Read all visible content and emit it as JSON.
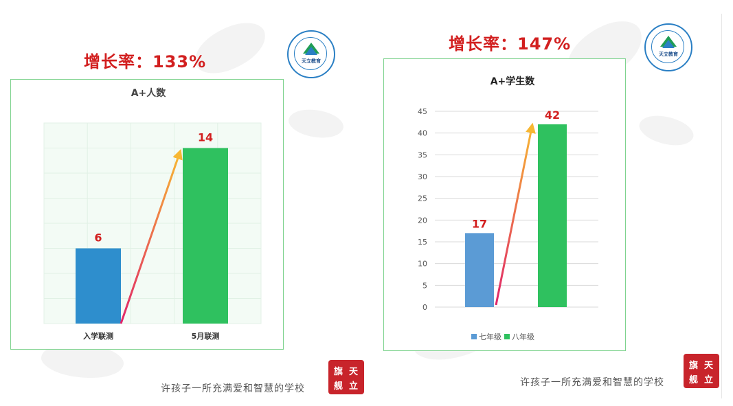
{
  "left": {
    "growth_label": "增长率：133%",
    "chart_title": "A+人数",
    "logo_text": "天立教育"
  },
  "right": {
    "growth_label": "增长率：147%",
    "chart_title": "A+学生数",
    "logo_text": "天立教育"
  },
  "footer": {
    "slogan": "许孩子一所充满爱和智慧的学校",
    "seal_chars": [
      "旗",
      "天",
      "舰",
      "立"
    ]
  },
  "colors": {
    "accent_red": "#d21f1f",
    "bar_blue_left": "#2e8ecd",
    "bar_blue_right": "#5b9bd5",
    "bar_green": "#2fc15f"
  },
  "chart_data": [
    {
      "type": "bar",
      "title": "A+人数",
      "categories": [
        "入学联测",
        "5月联测"
      ],
      "values": [
        6,
        14
      ],
      "ylim": [
        0,
        16
      ],
      "grid": true,
      "data_labels": [
        "6",
        "14"
      ]
    },
    {
      "type": "bar",
      "title": "A+学生数",
      "categories": [
        "七年级",
        "八年级"
      ],
      "values": [
        17,
        42
      ],
      "ylim": [
        0,
        45
      ],
      "yticks": [
        0,
        5,
        10,
        15,
        20,
        25,
        30,
        35,
        40,
        45
      ],
      "grid": true,
      "legend": "bottom",
      "data_labels": [
        "17",
        "42"
      ],
      "legend_labels": [
        "七年级",
        "八年级"
      ]
    }
  ]
}
